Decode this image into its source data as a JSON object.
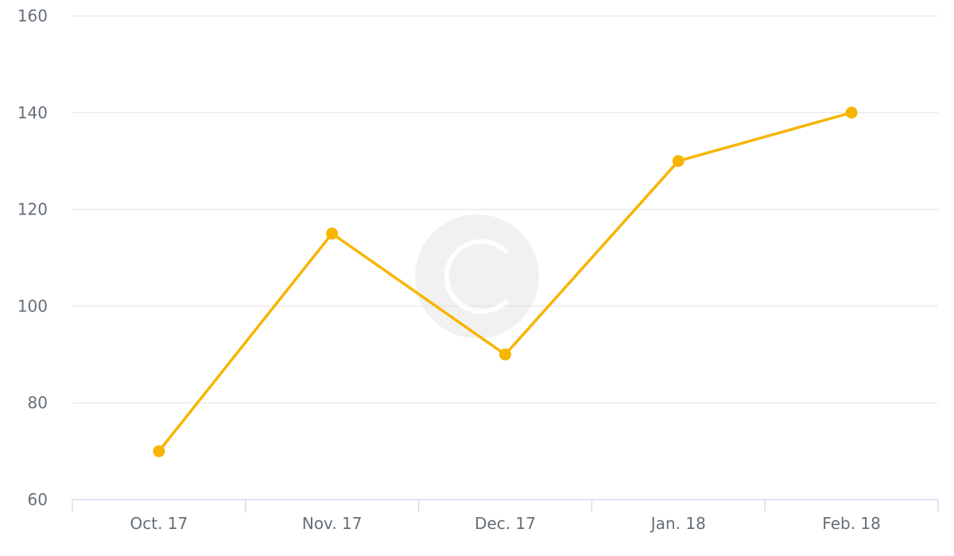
{
  "chart_data": {
    "type": "line",
    "title": "",
    "xlabel": "",
    "ylabel": "",
    "categories": [
      "Oct. 17",
      "Nov. 17",
      "Dec. 17",
      "Jan. 18",
      "Feb. 18"
    ],
    "series": [
      {
        "values": [
          70,
          115,
          90,
          130,
          140
        ],
        "color": "#f7b500"
      }
    ],
    "ylim": [
      60,
      160
    ],
    "yticks": [
      "60",
      "80",
      "100",
      "120",
      "140",
      "160"
    ],
    "grid": true,
    "legend": "none"
  },
  "watermark": {
    "icon": "copyright-icon"
  }
}
